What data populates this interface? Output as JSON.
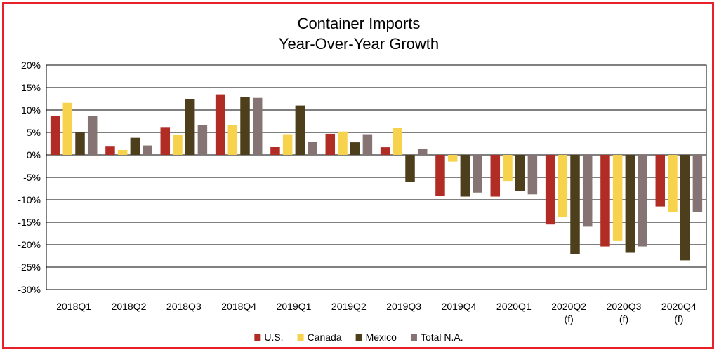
{
  "chart_data": {
    "type": "bar",
    "title": "Container Imports",
    "subtitle": "Year-Over-Year Growth",
    "categories": [
      [
        "2018Q1"
      ],
      [
        "2018Q2"
      ],
      [
        "2018Q3"
      ],
      [
        "2018Q4"
      ],
      [
        "2019Q1"
      ],
      [
        "2019Q2"
      ],
      [
        "2019Q3"
      ],
      [
        "2019Q4"
      ],
      [
        "2020Q1"
      ],
      [
        "2020Q2",
        "(f)"
      ],
      [
        "2020Q3",
        "(f)"
      ],
      [
        "2020Q4",
        "(f)"
      ]
    ],
    "series": [
      {
        "name": "U.S.",
        "color": "#b22c26",
        "values": [
          8.7,
          2.0,
          6.2,
          13.5,
          1.8,
          4.7,
          1.7,
          -9.2,
          -9.3,
          -15.5,
          -20.4,
          -11.5
        ]
      },
      {
        "name": "Canada",
        "color": "#f7d24c",
        "values": [
          11.6,
          1.1,
          4.4,
          6.6,
          4.6,
          5.2,
          6.0,
          -1.5,
          -5.8,
          -13.8,
          -19.2,
          -12.7
        ]
      },
      {
        "name": "Mexico",
        "color": "#4e3f1c",
        "values": [
          5.0,
          3.8,
          12.5,
          12.9,
          11.0,
          2.8,
          -6.0,
          -9.3,
          -8.0,
          -22.1,
          -21.8,
          -23.5
        ]
      },
      {
        "name": "Total N.A.",
        "color": "#857473",
        "values": [
          8.6,
          2.1,
          6.6,
          12.7,
          2.9,
          4.6,
          1.3,
          -8.4,
          -8.8,
          -16.0,
          -20.4,
          -12.8
        ]
      }
    ],
    "ylim": [
      -30,
      20
    ],
    "yticks": [
      20,
      15,
      10,
      5,
      0,
      -5,
      -10,
      -15,
      -20,
      -25,
      -30
    ],
    "ytick_labels": [
      "20%",
      "15%",
      "10%",
      "5%",
      "0%",
      "-5%",
      "-10%",
      "-15%",
      "-20%",
      "-25%",
      "-30%"
    ],
    "grid": true,
    "legend": "bottom-center"
  }
}
